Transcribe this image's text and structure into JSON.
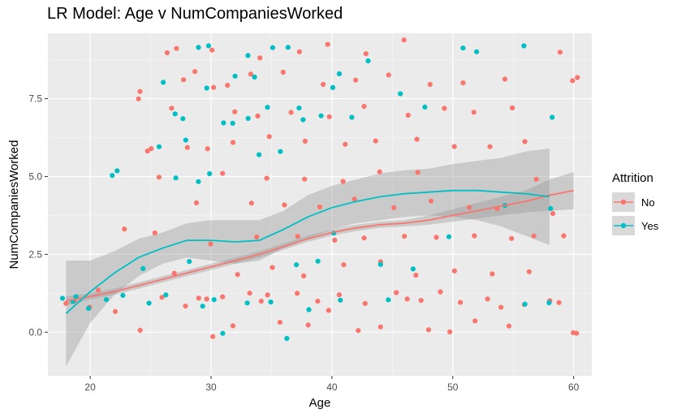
{
  "chart_data": {
    "type": "scatter",
    "title": "LR Model: Age v NumCompaniesWorked",
    "xlabel": "Age",
    "ylabel": "NumCompaniesWorked",
    "xlim": [
      16.5,
      61.5
    ],
    "ylim": [
      -1.4,
      9.6
    ],
    "x_ticks": [
      20,
      30,
      40,
      50,
      60
    ],
    "y_ticks": [
      0.0,
      2.5,
      5.0,
      7.5
    ],
    "y_tick_labels": [
      "0.0",
      "2.5",
      "5.0",
      "7.5"
    ],
    "grid": true,
    "legend": {
      "title": "Attrition",
      "placement": "right",
      "entries": [
        {
          "label": "No",
          "color": "#F8766D"
        },
        {
          "label": "Yes",
          "color": "#00BFC4"
        }
      ]
    },
    "series": [
      {
        "name": "No",
        "color": "#F8766D",
        "points": [
          [
            18,
            0.9
          ],
          [
            19,
            1.1
          ],
          [
            20,
            0.8
          ],
          [
            21,
            1.2
          ],
          [
            22,
            0.7
          ],
          [
            23,
            3.2
          ],
          [
            24,
            7.9
          ],
          [
            24,
            7.6
          ],
          [
            24,
            0.2
          ],
          [
            25,
            5.9
          ],
          [
            25,
            6.0
          ],
          [
            25,
            3.0
          ],
          [
            26,
            5.0
          ],
          [
            26,
            9.1
          ],
          [
            26,
            1.1
          ],
          [
            27,
            9.2
          ],
          [
            27,
            7.0
          ],
          [
            27,
            2.0
          ],
          [
            28,
            6.0
          ],
          [
            28,
            8.0
          ],
          [
            28,
            0.9
          ],
          [
            29,
            8.2
          ],
          [
            29,
            4.0
          ],
          [
            29,
            1.2
          ],
          [
            30,
            9.1
          ],
          [
            30,
            7.8
          ],
          [
            30,
            6.0
          ],
          [
            30,
            3.0
          ],
          [
            30,
            1.1
          ],
          [
            30,
            -0.2
          ],
          [
            31,
            8.0
          ],
          [
            31,
            5.1
          ],
          [
            31,
            1.0
          ],
          [
            32,
            7.1
          ],
          [
            32,
            6.2
          ],
          [
            32,
            2.0
          ],
          [
            32,
            0.1
          ],
          [
            33,
            8.1
          ],
          [
            33,
            4.0
          ],
          [
            33,
            1.2
          ],
          [
            34,
            9.0
          ],
          [
            34,
            7.0
          ],
          [
            34,
            3.1
          ],
          [
            34,
            0.9
          ],
          [
            35,
            6.1
          ],
          [
            35,
            5.0
          ],
          [
            35,
            2.1
          ],
          [
            35,
            1.0
          ],
          [
            36,
            8.2
          ],
          [
            36,
            4.1
          ],
          [
            36,
            0.2
          ],
          [
            37,
            9.1
          ],
          [
            37,
            7.2
          ],
          [
            37,
            3.0
          ],
          [
            37,
            1.1
          ],
          [
            38,
            6.0
          ],
          [
            38,
            5.1
          ],
          [
            38,
            2.0
          ],
          [
            38,
            0.1
          ],
          [
            39,
            8.1
          ],
          [
            39,
            4.2
          ],
          [
            39,
            1.0
          ],
          [
            40,
            9.3
          ],
          [
            40,
            7.0
          ],
          [
            40,
            3.1
          ],
          [
            40,
            0.9
          ],
          [
            41,
            6.2
          ],
          [
            41,
            5.0
          ],
          [
            41,
            2.2
          ],
          [
            41,
            1.1
          ],
          [
            42,
            8.0
          ],
          [
            42,
            4.1
          ],
          [
            42,
            0.0
          ],
          [
            43,
            9.0
          ],
          [
            43,
            7.1
          ],
          [
            43,
            3.2
          ],
          [
            43,
            1.0
          ],
          [
            44,
            6.1
          ],
          [
            44,
            5.2
          ],
          [
            44,
            2.1
          ],
          [
            44,
            0.2
          ],
          [
            45,
            8.1
          ],
          [
            45,
            4.0
          ],
          [
            45,
            1.2
          ],
          [
            46,
            9.2
          ],
          [
            46,
            7.0
          ],
          [
            46,
            3.0
          ],
          [
            46,
            0.9
          ],
          [
            47,
            6.0
          ],
          [
            47,
            5.0
          ],
          [
            47,
            2.0
          ],
          [
            47,
            1.0
          ],
          [
            48,
            8.0
          ],
          [
            48,
            4.1
          ],
          [
            48,
            0.1
          ],
          [
            49,
            7.1
          ],
          [
            49,
            3.1
          ],
          [
            49,
            1.1
          ],
          [
            50,
            6.1
          ],
          [
            50,
            2.1
          ],
          [
            50,
            0.0
          ],
          [
            51,
            8.2
          ],
          [
            51,
            4.0
          ],
          [
            51,
            1.0
          ],
          [
            52,
            7.0
          ],
          [
            52,
            3.0
          ],
          [
            52,
            0.2
          ],
          [
            53,
            6.0
          ],
          [
            53,
            2.0
          ],
          [
            53,
            1.1
          ],
          [
            54,
            8.1
          ],
          [
            54,
            4.1
          ],
          [
            54,
            0.9
          ],
          [
            55,
            7.2
          ],
          [
            55,
            3.2
          ],
          [
            55,
            0.1
          ],
          [
            56,
            6.1
          ],
          [
            56,
            2.1
          ],
          [
            56,
            1.0
          ],
          [
            57,
            5.1
          ],
          [
            57,
            3.0
          ],
          [
            58,
            4.0
          ],
          [
            58,
            1.1
          ],
          [
            59,
            9.1
          ],
          [
            59,
            3.1
          ],
          [
            59,
            0.9
          ],
          [
            60,
            8.0
          ],
          [
            60,
            7.9
          ],
          [
            60,
            0.0
          ],
          [
            60.3,
            0.1
          ]
        ]
      },
      {
        "name": "Yes",
        "color": "#00BFC4",
        "points": [
          [
            18,
            1.0
          ],
          [
            18.5,
            0.8
          ],
          [
            19,
            1.2
          ],
          [
            20,
            0.9
          ],
          [
            21,
            1.0
          ],
          [
            22,
            5.1
          ],
          [
            22,
            5.0
          ],
          [
            23,
            1.1
          ],
          [
            24,
            2.0
          ],
          [
            25,
            1.0
          ],
          [
            26,
            8.0
          ],
          [
            26,
            6.0
          ],
          [
            26,
            1.1
          ],
          [
            27,
            7.0
          ],
          [
            27,
            5.0
          ],
          [
            28,
            7.0
          ],
          [
            28,
            6.0
          ],
          [
            28,
            2.1
          ],
          [
            29,
            9.0
          ],
          [
            29,
            5.0
          ],
          [
            29,
            0.9
          ],
          [
            30,
            9.3
          ],
          [
            30,
            7.9
          ],
          [
            30,
            4.9
          ],
          [
            30,
            1.0
          ],
          [
            31,
            6.9
          ],
          [
            31,
            0.1
          ],
          [
            32,
            8.3
          ],
          [
            32,
            6.7
          ],
          [
            33,
            9.0
          ],
          [
            33,
            6.8
          ],
          [
            33,
            1.1
          ],
          [
            34,
            8.2
          ],
          [
            34,
            5.9
          ],
          [
            35,
            9.3
          ],
          [
            35,
            7.3
          ],
          [
            35,
            0.9
          ],
          [
            36,
            9.0
          ],
          [
            36,
            6.0
          ],
          [
            36,
            -0.4
          ],
          [
            37,
            7.1
          ],
          [
            37,
            2.0
          ],
          [
            38,
            6.9
          ],
          [
            38,
            0.9
          ],
          [
            39,
            7.0
          ],
          [
            39,
            2.1
          ],
          [
            40,
            8.0
          ],
          [
            40,
            3.1
          ],
          [
            41,
            8.4
          ],
          [
            41,
            1.1
          ],
          [
            42,
            7.0
          ],
          [
            43,
            8.7
          ],
          [
            44,
            2.0
          ],
          [
            45,
            1.1
          ],
          [
            46,
            7.8
          ],
          [
            47,
            2.1
          ],
          [
            48,
            7.3
          ],
          [
            50,
            3.1
          ],
          [
            51,
            9.0
          ],
          [
            52,
            9.0
          ],
          [
            54,
            4.0
          ],
          [
            56,
            9.1
          ],
          [
            56,
            1.0
          ],
          [
            58,
            7.0
          ],
          [
            58,
            4.0
          ],
          [
            58,
            0.8
          ]
        ]
      }
    ],
    "smooth": [
      {
        "name": "No",
        "color": "#F8766D",
        "x": [
          18,
          20,
          22,
          24,
          26,
          28,
          30,
          32,
          34,
          36,
          38,
          40,
          42,
          44,
          46,
          48,
          50,
          52,
          54,
          56,
          58,
          60
        ],
        "y": [
          1.0,
          1.15,
          1.3,
          1.5,
          1.7,
          1.9,
          2.1,
          2.3,
          2.5,
          2.75,
          3.0,
          3.2,
          3.35,
          3.45,
          3.5,
          3.6,
          3.75,
          3.9,
          4.05,
          4.2,
          4.4,
          4.55
        ],
        "lower": [
          0.85,
          1.05,
          1.2,
          1.4,
          1.6,
          1.8,
          2.0,
          2.2,
          2.4,
          2.65,
          2.9,
          3.1,
          3.25,
          3.35,
          3.4,
          3.45,
          3.55,
          3.65,
          3.75,
          3.85,
          3.9,
          3.95
        ],
        "upper": [
          1.15,
          1.25,
          1.4,
          1.6,
          1.8,
          2.0,
          2.2,
          2.4,
          2.6,
          2.85,
          3.1,
          3.3,
          3.45,
          3.55,
          3.6,
          3.75,
          3.95,
          4.15,
          4.35,
          4.55,
          4.9,
          5.15
        ]
      },
      {
        "name": "Yes",
        "color": "#00BFC4",
        "x": [
          18,
          20,
          22,
          24,
          26,
          28,
          30,
          32,
          34,
          36,
          38,
          40,
          42,
          44,
          46,
          48,
          50,
          52,
          54,
          56,
          58
        ],
        "y": [
          0.6,
          1.3,
          1.9,
          2.4,
          2.7,
          2.95,
          2.95,
          2.9,
          2.95,
          3.3,
          3.7,
          4.0,
          4.2,
          4.35,
          4.45,
          4.5,
          4.55,
          4.55,
          4.5,
          4.45,
          4.35
        ],
        "lower": [
          -1.1,
          0.3,
          1.2,
          1.8,
          2.2,
          2.4,
          2.3,
          2.2,
          2.3,
          2.7,
          3.0,
          3.3,
          3.5,
          3.6,
          3.7,
          3.75,
          3.7,
          3.6,
          3.4,
          3.1,
          2.8
        ],
        "upper": [
          2.3,
          2.3,
          2.6,
          3.0,
          3.2,
          3.5,
          3.6,
          3.6,
          3.6,
          3.9,
          4.4,
          4.7,
          4.9,
          5.1,
          5.2,
          5.25,
          5.4,
          5.5,
          5.6,
          5.8,
          5.9
        ]
      }
    ]
  }
}
